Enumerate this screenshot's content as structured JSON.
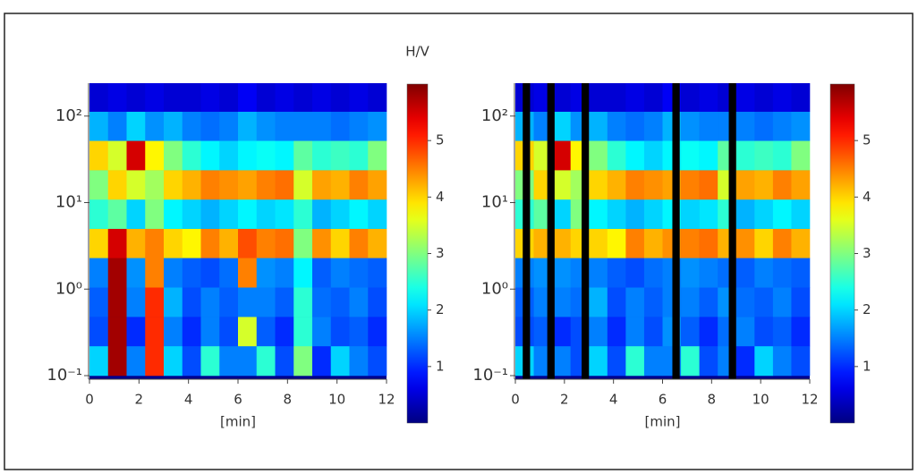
{
  "chart_data": [
    {
      "type": "heatmap",
      "colorbar_label": "H/V",
      "xlabel": "[min]",
      "colormap": "jet",
      "xlim": [
        0,
        12
      ],
      "xticks": [
        0,
        2,
        4,
        6,
        8,
        10,
        12
      ],
      "ylog": true,
      "ylim": [
        0.1,
        240
      ],
      "yticks": [
        {
          "value": 0.1,
          "label": "10⁻¹"
        },
        {
          "value": 1,
          "label": "10⁰"
        },
        {
          "value": 10,
          "label": "10¹"
        },
        {
          "value": 100,
          "label": "10²"
        }
      ],
      "zlim": [
        0,
        6
      ],
      "zticks": [
        1,
        2,
        3,
        4,
        5
      ],
      "x_bins": [
        0,
        0.75,
        1.5,
        2.25,
        3,
        3.75,
        4.5,
        5.25,
        6,
        6.75,
        7.5,
        8.25,
        9,
        9.75,
        10.5,
        11.25,
        12
      ],
      "y_bins": [
        0.1,
        0.22,
        0.48,
        1.05,
        2.3,
        5,
        10.9,
        23.8,
        52,
        113,
        240
      ],
      "z": [
        [
          2,
          5.8,
          1.5,
          5,
          2,
          1.2,
          2.5,
          1.5,
          1.5,
          2.5,
          1.2,
          3,
          1,
          2,
          1.5,
          1.2
        ],
        [
          1.2,
          5.8,
          1,
          5,
          1.5,
          1,
          1.5,
          1.2,
          3.5,
          1.3,
          1,
          2.5,
          1.5,
          1.2,
          1.3,
          1
        ],
        [
          1.3,
          5.8,
          1.5,
          5,
          1.8,
          1.2,
          1.5,
          1.3,
          1.5,
          1.5,
          1.3,
          2.5,
          1.4,
          1.3,
          1.5,
          1.2
        ],
        [
          1.5,
          5.8,
          1.6,
          4.5,
          1.5,
          1.3,
          1.2,
          1.4,
          4.5,
          1.6,
          1.5,
          2.2,
          1.3,
          1.5,
          1.4,
          1.3
        ],
        [
          4,
          5.5,
          4.2,
          4.5,
          4,
          3.8,
          4.5,
          4.2,
          4.8,
          4.5,
          4.6,
          3,
          4.4,
          4,
          4.5,
          4.2
        ],
        [
          2.5,
          2.8,
          2,
          3,
          2.2,
          2,
          1.8,
          2,
          2.2,
          2,
          2.1,
          2.5,
          1.8,
          2,
          2.2,
          2
        ],
        [
          3,
          4,
          3.5,
          3.2,
          4,
          4.2,
          4.5,
          4.4,
          4.3,
          4.5,
          4.6,
          3.5,
          4.3,
          4.2,
          4.5,
          4.3
        ],
        [
          4,
          3.5,
          5.5,
          3.8,
          3,
          2.5,
          2.2,
          2,
          2.2,
          2.3,
          2.2,
          2.8,
          2.5,
          2.6,
          2.5,
          3
        ],
        [
          1.8,
          1.5,
          2,
          1.6,
          1.8,
          1.5,
          1.4,
          1.5,
          1.8,
          1.6,
          1.5,
          1.5,
          1.5,
          1.4,
          1.5,
          1.6
        ],
        [
          0.5,
          0.6,
          0.5,
          0.6,
          0.5,
          0.5,
          0.6,
          0.5,
          0.7,
          0.5,
          0.6,
          0.5,
          0.6,
          0.5,
          0.6,
          0.5
        ]
      ]
    },
    {
      "type": "heatmap",
      "xlabel": "[min]",
      "colormap": "jet",
      "xlim": [
        0,
        12
      ],
      "xticks": [
        0,
        2,
        4,
        6,
        8,
        10,
        12
      ],
      "ylog": true,
      "ylim": [
        0.1,
        240
      ],
      "yticks": [
        {
          "value": 0.1,
          "label": "10⁻¹"
        },
        {
          "value": 1,
          "label": "10⁰"
        },
        {
          "value": 10,
          "label": "10¹"
        },
        {
          "value": 100,
          "label": "10²"
        }
      ],
      "zlim": [
        0,
        6
      ],
      "zticks": [
        1,
        2,
        3,
        4,
        5
      ],
      "x_bins": [
        0,
        0.75,
        1.5,
        2.25,
        3,
        3.75,
        4.5,
        5.25,
        6,
        6.75,
        7.5,
        8.25,
        9,
        9.75,
        10.5,
        11.25,
        12
      ],
      "y_bins": [
        0.1,
        0.22,
        0.48,
        1.05,
        2.3,
        5,
        10.9,
        23.8,
        52,
        113,
        240
      ],
      "masks": [
        [
          0.3,
          0.6
        ],
        [
          1.3,
          1.6
        ],
        [
          2.7,
          3.0
        ],
        [
          6.4,
          6.7
        ],
        [
          8.7,
          9.0
        ]
      ],
      "z": [
        [
          2,
          1.5,
          1.5,
          1.2,
          2,
          1.2,
          2.5,
          1.5,
          1.5,
          2.5,
          1.2,
          1.5,
          1,
          2,
          1.5,
          1.2
        ],
        [
          1.2,
          1.3,
          1,
          1.2,
          1.5,
          1,
          1.5,
          1.2,
          1.6,
          1.3,
          1,
          1.4,
          1.5,
          1.2,
          1.3,
          1
        ],
        [
          1.3,
          1.5,
          1.5,
          1.4,
          1.8,
          1.2,
          1.5,
          1.3,
          1.5,
          1.5,
          1.3,
          1.6,
          1.4,
          1.3,
          1.5,
          1.2
        ],
        [
          1.5,
          1.6,
          1.6,
          1.5,
          1.5,
          1.3,
          1.2,
          1.4,
          1.5,
          1.6,
          1.5,
          1.4,
          1.3,
          1.5,
          1.4,
          1.3
        ],
        [
          4,
          4.2,
          4.2,
          4,
          4,
          3.8,
          4.5,
          4.2,
          4.4,
          4.5,
          4.6,
          4.2,
          4.4,
          4,
          4.5,
          4.2
        ],
        [
          2.5,
          2.8,
          2,
          3,
          2.2,
          2,
          1.8,
          2,
          2.2,
          2,
          2.1,
          2.5,
          1.8,
          2,
          2.2,
          2
        ],
        [
          3,
          4,
          3.5,
          3.2,
          4,
          4.2,
          4.5,
          4.4,
          4.3,
          4.5,
          4.6,
          3.5,
          4.3,
          4.2,
          4.5,
          4.3
        ],
        [
          4,
          3.5,
          5.5,
          3.8,
          3,
          2.5,
          2.2,
          2,
          2.2,
          2.3,
          2.2,
          2.8,
          2.5,
          2.6,
          2.5,
          3
        ],
        [
          1.8,
          1.5,
          2,
          1.6,
          1.8,
          1.5,
          1.4,
          1.5,
          1.8,
          1.6,
          1.5,
          1.5,
          1.5,
          1.4,
          1.5,
          1.6
        ],
        [
          0.5,
          0.6,
          0.5,
          0.6,
          0.5,
          0.5,
          0.6,
          0.5,
          0.7,
          0.5,
          0.6,
          0.5,
          0.6,
          0.5,
          0.6,
          0.5
        ]
      ]
    }
  ]
}
